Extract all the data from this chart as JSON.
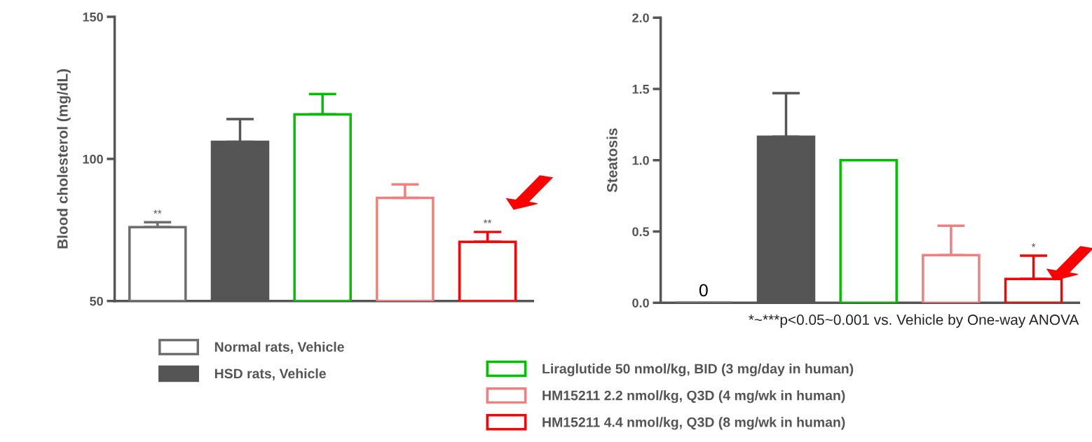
{
  "chart_data": [
    {
      "type": "bar",
      "ylabel": "Blood cholesterol (mg/dL)",
      "categories": [
        null,
        null,
        null,
        null,
        null
      ],
      "ylim": [
        50,
        150
      ],
      "yticks": [
        50,
        100,
        150
      ],
      "legend": "bottom",
      "series": [
        {
          "name": "Normal rats, Vehicle",
          "color": "#6e6e6e",
          "values": [
            76,
            null,
            null,
            null,
            null
          ],
          "errors": [
            [
              76,
              77.7
            ],
            null,
            null,
            null,
            null
          ],
          "value_labels": [
            "**",
            null,
            null,
            null,
            null
          ]
        },
        {
          "name": "HSD rats, Vehicle",
          "color": "#555555",
          "values": [
            null,
            106,
            null,
            null,
            null
          ],
          "errors": [
            null,
            [
              106,
              114
            ],
            null,
            null,
            null
          ]
        },
        {
          "name": "Liraglutide 50 nmol/kg, BID (3 mg/day in human)",
          "color": "#00c000",
          "values": [
            null,
            null,
            115.7,
            null,
            null
          ],
          "errors": [
            null,
            null,
            [
              115.7,
              122.8
            ],
            null,
            null
          ]
        },
        {
          "name": "HM15211 2.2 nmol/kg, Q3D (4 mg/wk in human)",
          "color": "#f08080",
          "values": [
            null,
            null,
            null,
            86.3,
            null
          ],
          "errors": [
            null,
            null,
            null,
            [
              86.3,
              91
            ],
            null
          ]
        },
        {
          "name": "HM15211 4.4 nmol/kg, Q3D (8 mg/wk in human)",
          "color": "#ff0000",
          "values": [
            null,
            null,
            null,
            null,
            70.8
          ],
          "errors": [
            null,
            null,
            null,
            null,
            [
              70.8,
              74.3
            ]
          ],
          "value_labels": [
            null,
            null,
            null,
            null,
            "**"
          ]
        }
      ]
    },
    {
      "type": "bar",
      "ylabel": "Steatosis",
      "categories": [
        null,
        null,
        null,
        null,
        null
      ],
      "ylim": [
        0,
        2
      ],
      "yticks": [
        {
          "value": 0,
          "label": "0.0"
        },
        {
          "value": 0.5,
          "label": "0.5"
        },
        {
          "value": 1,
          "label": "1.0"
        },
        {
          "value": 1.5,
          "label": "1.5"
        },
        {
          "value": 2,
          "label": "2.0"
        }
      ],
      "annotations": [
        "*~***p<0.05~0.001 vs. Vehicle by One-way ANOVA"
      ],
      "series": [
        {
          "color": "#6e6e6e",
          "values": [
            0,
            null,
            null,
            null,
            null
          ],
          "value_labels": [
            "0",
            null,
            null,
            null,
            null
          ]
        },
        {
          "color": "#555555",
          "values": [
            null,
            1.165,
            null,
            null,
            null
          ],
          "errors": [
            null,
            [
              1.165,
              1.47
            ],
            null,
            null,
            null
          ]
        },
        {
          "color": "#00c000",
          "values": [
            null,
            null,
            1.0,
            null,
            null
          ]
        },
        {
          "color": "#f08080",
          "values": [
            null,
            null,
            null,
            0.334,
            null
          ],
          "errors": [
            null,
            null,
            null,
            [
              0.334,
              0.54
            ],
            null
          ]
        },
        {
          "color": "#ff0000",
          "values": [
            null,
            null,
            null,
            null,
            0.167
          ],
          "errors": [
            null,
            null,
            null,
            null,
            [
              0.167,
              0.33
            ]
          ],
          "value_labels": [
            null,
            null,
            null,
            null,
            "*"
          ]
        }
      ]
    }
  ]
}
